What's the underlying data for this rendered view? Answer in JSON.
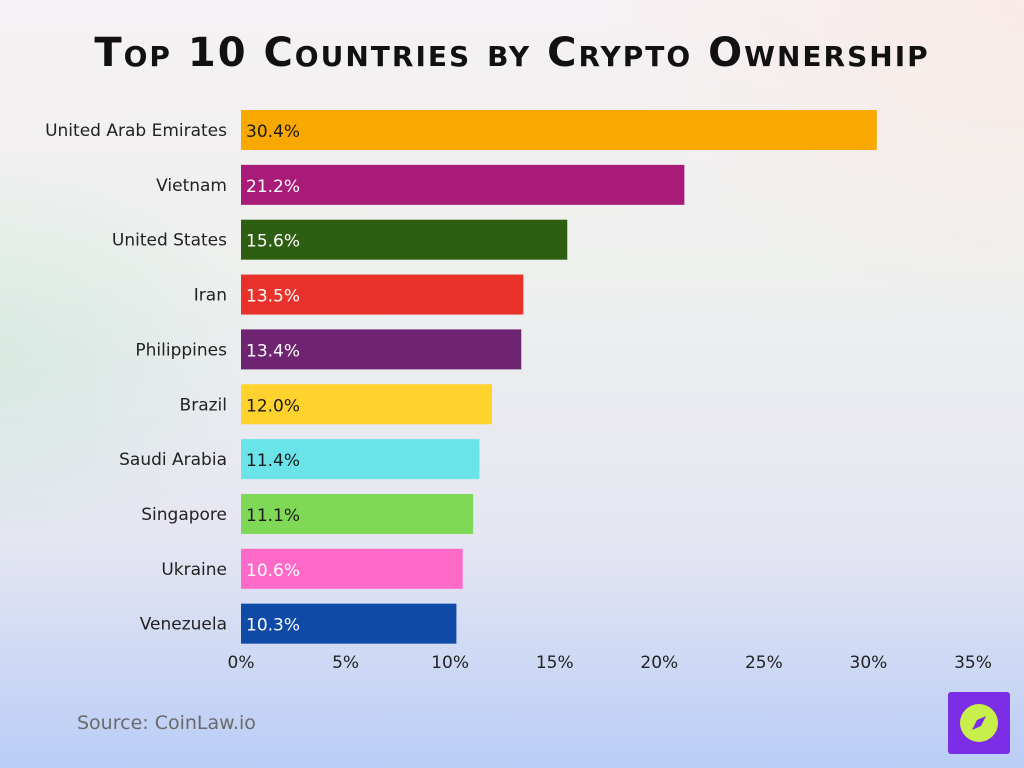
{
  "title": "Top 10 Countries by Crypto Ownership",
  "source": "Source: CoinLaw.io",
  "logo_icon": "compass-icon",
  "chart_data": {
    "type": "bar",
    "orientation": "horizontal",
    "title": "Top 10 Countries by Crypto Ownership",
    "xlabel": "",
    "ylabel": "",
    "xlim": [
      0,
      35
    ],
    "value_format": "percent",
    "ticks": [
      "0%",
      "5%",
      "10%",
      "15%",
      "20%",
      "25%",
      "30%",
      "35%"
    ],
    "tick_values": [
      0,
      5,
      10,
      15,
      20,
      25,
      30,
      35
    ],
    "grid": false,
    "categories": [
      "United Arab Emirates",
      "Vietnam",
      "United States",
      "Iran",
      "Philippines",
      "Brazil",
      "Saudi Arabia",
      "Singapore",
      "Ukraine",
      "Venezuela"
    ],
    "values": [
      30.4,
      21.2,
      15.6,
      13.5,
      13.4,
      12.0,
      11.4,
      11.1,
      10.6,
      10.3
    ],
    "labels": [
      "30.4%",
      "21.2%",
      "15.6%",
      "13.5%",
      "13.4%",
      "12.0%",
      "11.4%",
      "11.1%",
      "10.6%",
      "10.3%"
    ],
    "colors": [
      "#f9a800",
      "#a81b78",
      "#2e5e12",
      "#e8312a",
      "#6e2470",
      "#ffd22e",
      "#6ae4e8",
      "#7fd957",
      "#ff6ac8",
      "#0f4aa6"
    ],
    "label_colors": [
      "#1a1a1a",
      "#ffffff",
      "#ffffff",
      "#ffffff",
      "#ffffff",
      "#1a1a1a",
      "#1a1a1a",
      "#1a1a1a",
      "#ffffff",
      "#ffffff"
    ]
  }
}
